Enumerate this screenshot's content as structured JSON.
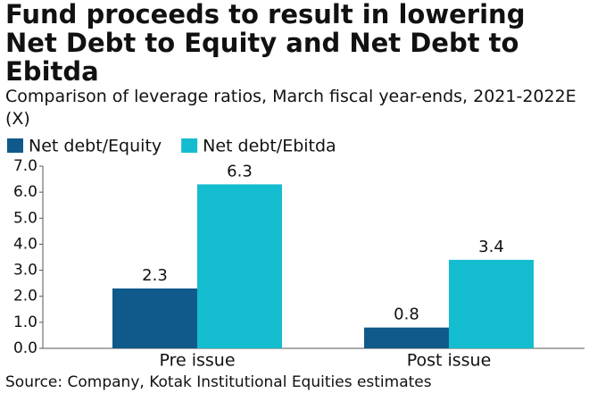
{
  "chart_data": {
    "type": "bar",
    "title": "Fund proceeds to result in lowering Net Debt to Equity and Net Debt to Ebitda",
    "subtitle": "Comparison of leverage ratios, March fiscal year-ends, 2021-2022E (X)",
    "source": "Source: Company, Kotak Institutional Equities estimates",
    "categories": [
      "Pre issue",
      "Post issue"
    ],
    "series": [
      {
        "name": "Net debt/Equity",
        "color": "#0f5a8a",
        "values": [
          2.3,
          0.8
        ]
      },
      {
        "name": "Net debt/Ebitda",
        "color": "#14bcd0",
        "values": [
          6.3,
          3.4
        ]
      }
    ],
    "ylim": [
      0,
      7
    ],
    "yticks": [
      {
        "value": 0,
        "label": "0.0"
      },
      {
        "value": 1,
        "label": "1.0"
      },
      {
        "value": 2,
        "label": "2.0"
      },
      {
        "value": 3,
        "label": "3.0"
      },
      {
        "value": 4,
        "label": "4.0"
      },
      {
        "value": 5,
        "label": "5.0"
      },
      {
        "value": 6,
        "label": "6.0"
      },
      {
        "value": 7,
        "label": "7.0"
      }
    ],
    "grid": false,
    "legend": "top"
  }
}
